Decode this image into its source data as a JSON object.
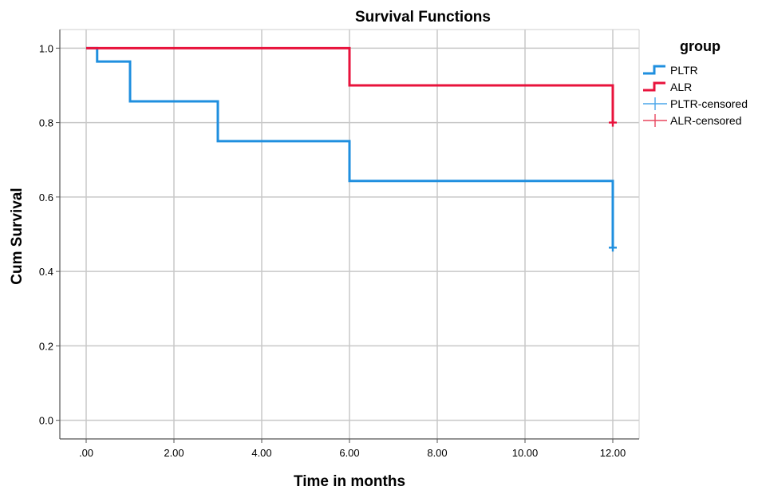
{
  "chart_data": {
    "type": "line",
    "title": "Survival Functions",
    "xlabel": "Time in months",
    "ylabel": "Cum Survival",
    "xlim": [
      -0.6,
      12.6
    ],
    "ylim": [
      -0.05,
      1.05
    ],
    "x_ticks": [
      0,
      2,
      4,
      6,
      8,
      10,
      12
    ],
    "x_tick_labels": [
      ".00",
      "2.00",
      "4.00",
      "6.00",
      "8.00",
      "10.00",
      "12.00"
    ],
    "y_ticks": [
      0,
      0.2,
      0.4,
      0.6,
      0.8,
      1.0
    ],
    "y_tick_labels": [
      "0.0",
      "0.2",
      "0.4",
      "0.6",
      "0.8",
      "1.0"
    ],
    "grid": true,
    "legend": {
      "title": "group",
      "position": "right",
      "entries": [
        {
          "label": "PLTR",
          "kind": "step",
          "color": "#1f8fdf"
        },
        {
          "label": "ALR",
          "kind": "step",
          "color": "#e8133c"
        },
        {
          "label": "PLTR-censored",
          "kind": "censor",
          "color": "#4aa6ea"
        },
        {
          "label": "ALR-censored",
          "kind": "censor",
          "color": "#e8465f"
        }
      ]
    },
    "series": [
      {
        "name": "PLTR",
        "color": "#1f8fdf",
        "steps": [
          [
            0,
            1.0
          ],
          [
            0.25,
            0.964
          ],
          [
            1,
            0.857
          ],
          [
            3,
            0.75
          ],
          [
            6,
            0.643
          ],
          [
            12,
            0.643
          ]
        ],
        "drop_to": 0.464,
        "censored": [
          [
            12,
            0.464
          ]
        ]
      },
      {
        "name": "ALR",
        "color": "#e8133c",
        "steps": [
          [
            0,
            1.0
          ],
          [
            6,
            0.9
          ],
          [
            12,
            0.9
          ]
        ],
        "drop_to": 0.8,
        "censored": [
          [
            12,
            0.8
          ]
        ]
      }
    ]
  }
}
